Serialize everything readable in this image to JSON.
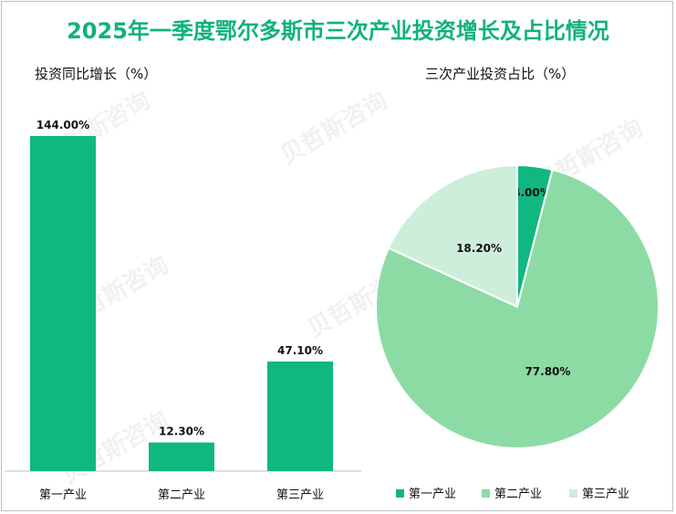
{
  "title": "2025年一季度鄂尔多斯市三次产业投资增长及占比情况",
  "watermark": "贝哲斯咨询",
  "colors": {
    "accent": "#10b27a",
    "primary": "#10b77f",
    "secondary": "#8ddba4",
    "tertiary": "#cdeedb"
  },
  "chart_data": [
    {
      "type": "bar",
      "title": "投资同比增长（%）",
      "categories": [
        "第一产业",
        "第二产业",
        "第三产业"
      ],
      "values": [
        144.0,
        12.3,
        47.1
      ],
      "value_labels": [
        "144.00%",
        "12.30%",
        "47.10%"
      ],
      "ylim": [
        0,
        144
      ],
      "xlabel": "",
      "ylabel": ""
    },
    {
      "type": "pie",
      "title": "三次产业投资占比（%）",
      "categories": [
        "第一产业",
        "第二产业",
        "第三产业"
      ],
      "values": [
        4.0,
        77.8,
        18.2
      ],
      "value_labels": [
        "4.00%",
        "77.80%",
        "18.20%"
      ],
      "legend": "bottom"
    }
  ]
}
